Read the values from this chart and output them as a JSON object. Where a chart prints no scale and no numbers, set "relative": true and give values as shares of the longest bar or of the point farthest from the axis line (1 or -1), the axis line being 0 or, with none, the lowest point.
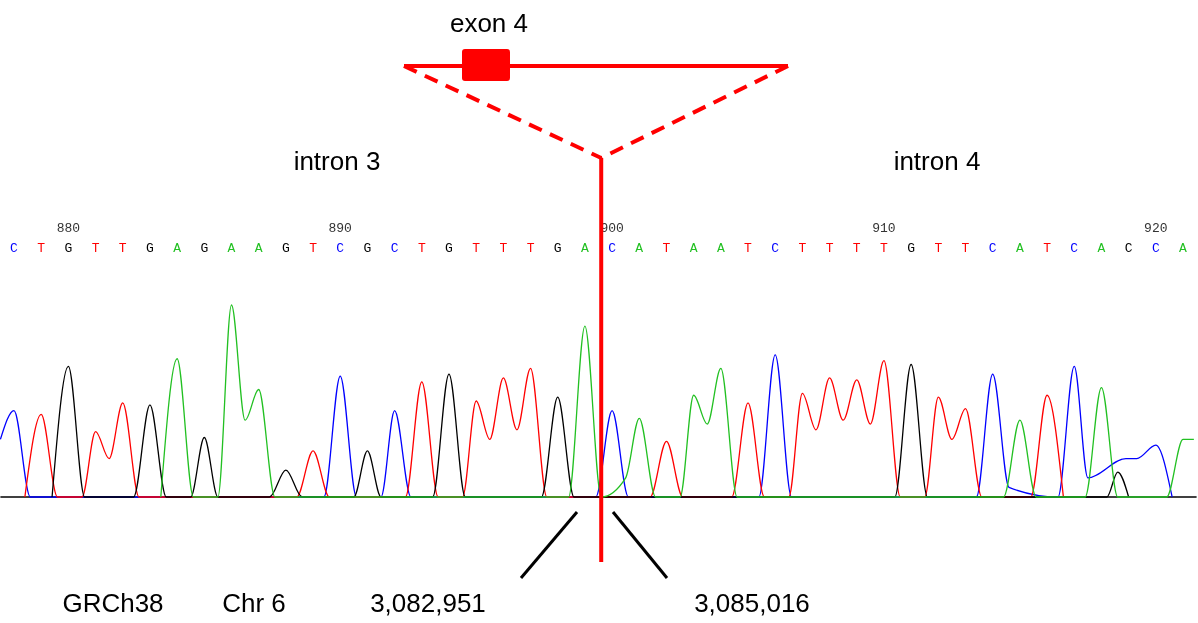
{
  "chart_data": {
    "type": "line",
    "relative": true,
    "tick_labels": "x",
    "xlim": [
      877.5,
      921.5
    ],
    "xticks": [
      880,
      890,
      900,
      910,
      920
    ],
    "series": [
      {
        "color": "#0000ff",
        "x": [
          877.5,
          878,
          878.6,
          889.4,
          890,
          890.6,
          891.5,
          892,
          892.6,
          899.4,
          900,
          900.6,
          905.4,
          906,
          906.6,
          913.4,
          914,
          914.6,
          916.4,
          917,
          917.5,
          918.9,
          919.3,
          920,
          920.6
        ],
        "values": [
          0.3,
          0.45,
          0,
          0,
          0.63,
          0,
          0,
          0.45,
          0,
          0,
          0.45,
          0,
          0,
          0.74,
          0,
          0,
          0.64,
          0.05,
          0,
          0.68,
          0.1,
          0.2,
          0.2,
          0.27,
          0
        ]
      },
      {
        "color": "#ff0000",
        "x": [
          878.4,
          879,
          879.6,
          880.5,
          881,
          881.5,
          882,
          882.6,
          888.4,
          889,
          889.6,
          892.4,
          893,
          893.6,
          894.5,
          895,
          895.5,
          896,
          896.5,
          897,
          897.6,
          901.4,
          902,
          902.6,
          904.4,
          905,
          905.6,
          906.5,
          907,
          907.5,
          908,
          908.5,
          909,
          909.5,
          910,
          910.6,
          911.5,
          912,
          912.5,
          913,
          913.6,
          915.4,
          916,
          916.6
        ],
        "values": [
          0,
          0.43,
          0,
          0,
          0.34,
          0.2,
          0.49,
          0,
          0,
          0.24,
          0,
          0,
          0.6,
          0,
          0,
          0.5,
          0.3,
          0.62,
          0.35,
          0.67,
          0,
          0,
          0.29,
          0,
          0,
          0.49,
          0,
          0,
          0.54,
          0.35,
          0.62,
          0.4,
          0.61,
          0.38,
          0.71,
          0,
          0,
          0.52,
          0.3,
          0.46,
          0,
          0,
          0.53,
          0
        ]
      },
      {
        "color": "#000000",
        "x": [
          879.4,
          880,
          880.6,
          882.4,
          883,
          883.6,
          884.5,
          885,
          885.5,
          887.4,
          888,
          888.6,
          890.5,
          891,
          891.5,
          893.4,
          894,
          894.6,
          897.4,
          898,
          898.6,
          910.4,
          911,
          911.6,
          918.2,
          918.6,
          919
        ],
        "values": [
          0,
          0.68,
          0,
          0,
          0.48,
          0,
          0,
          0.31,
          0,
          0,
          0.14,
          0,
          0,
          0.24,
          0,
          0,
          0.64,
          0,
          0,
          0.52,
          0,
          0,
          0.69,
          0,
          0,
          0.13,
          0
        ]
      },
      {
        "color": "#22c022",
        "x": [
          883.4,
          884,
          884.6,
          885.5,
          886,
          886.5,
          887,
          887.6,
          898.4,
          899,
          899.6,
          900.5,
          901,
          901.6,
          902.5,
          903,
          903.5,
          904,
          904.6,
          914.4,
          915,
          915.6,
          917.4,
          918,
          918.6,
          920.4,
          921,
          921.4
        ],
        "values": [
          0,
          0.72,
          0,
          0,
          1,
          0.4,
          0.56,
          0,
          0,
          0.89,
          0,
          0.1,
          0.41,
          0,
          0,
          0.53,
          0.38,
          0.67,
          0,
          0,
          0.4,
          0,
          0,
          0.57,
          0,
          0,
          0.3,
          0.3
        ]
      }
    ],
    "ref_lines": [
      {
        "axis": "x",
        "value": 899.6,
        "color": "#ff0000"
      }
    ],
    "annotations": [
      "exon 4",
      "intron 3",
      "intron 4",
      "GRCh38",
      "Chr 6",
      "3,082,951",
      "3,085,016",
      "C",
      "T",
      "G",
      "T",
      "T",
      "G",
      "A",
      "G",
      "A",
      "A",
      "G",
      "T",
      "C",
      "G",
      "C",
      "T",
      "G",
      "T",
      "T",
      "T",
      "G",
      "A",
      "C",
      "A",
      "T",
      "A",
      "A",
      "T",
      "C",
      "T",
      "T",
      "T",
      "T",
      "G",
      "T",
      "T",
      "C",
      "A",
      "T",
      "C",
      "A",
      "C",
      "C",
      "A"
    ]
  }
}
